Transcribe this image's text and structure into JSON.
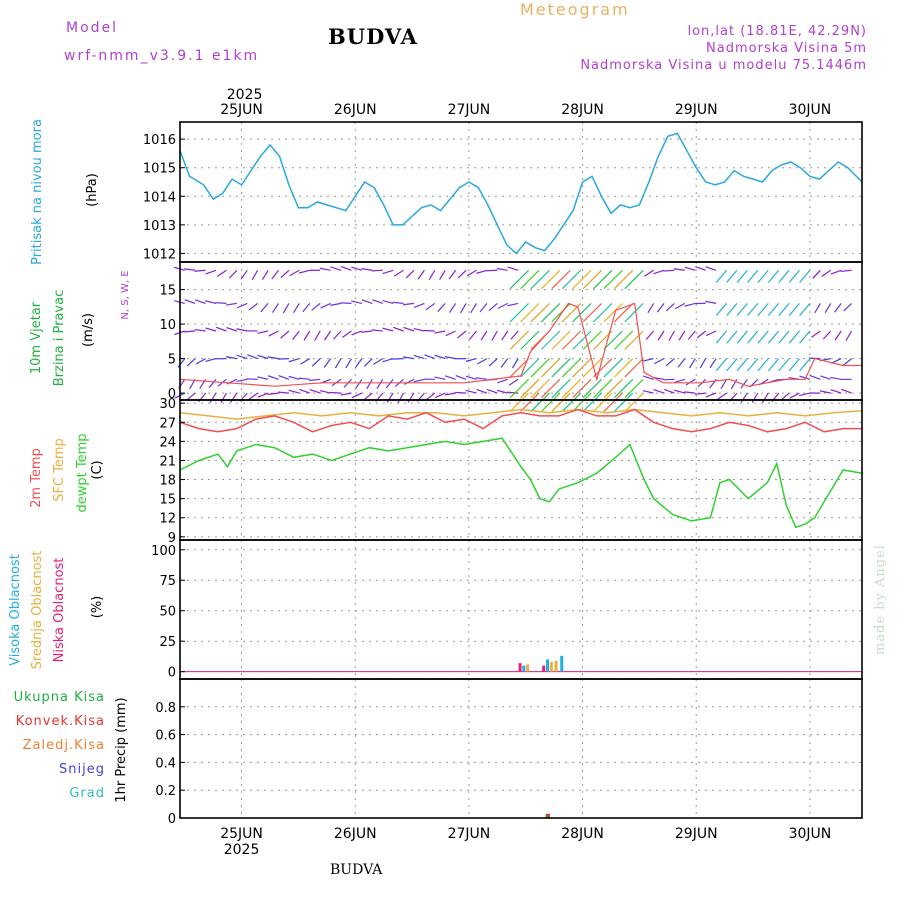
{
  "header": {
    "model_label": "Model",
    "model_version": "wrf-nmm_v3.9.1 e1km",
    "city": "BUDVA",
    "product": "Meteogram",
    "lonlat": "lon,lat (18.81E, 42.29N)",
    "elevation": "Nadmorska Visina 5m",
    "model_elevation": "Nadmorska Visina u modelu 75.1446m"
  },
  "credit": "made by Angel",
  "footer": "BUDVA",
  "colors": {
    "pressure": "#2aa8e0",
    "wind": "#20b040",
    "wind_dir": "#b040d0",
    "temp2m": "#f05050",
    "sfc": "#e8b040",
    "dewpt": "#30d030",
    "cloud_high": "#20b0e0",
    "cloud_mid": "#e8b040",
    "cloud_low": "#e0207a",
    "precip_total": "#20b040",
    "precip_conv": "#f03030",
    "precip_frozen": "#f08030",
    "snow": "#4040e0",
    "graupel": "#30c0b0"
  },
  "chart_data": [
    {
      "panel": "pressure",
      "type": "line",
      "x_top_labels": [
        "2025",
        "25JUN",
        "26JUN",
        "27JUN",
        "28JUN",
        "29JUN",
        "30JUN"
      ],
      "x_bottom_labels": [
        "25JUN",
        "26JUN",
        "27JUN",
        "28JUN",
        "29JUN",
        "30JUN",
        "2025"
      ],
      "xlim": [
        0,
        144
      ],
      "ylabel": "(hPa)",
      "side_label": "Pritisak na nivou mora",
      "ylim": [
        1011.7,
        1016.6
      ],
      "yticks": [
        1012,
        1013,
        1014,
        1015,
        1016
      ],
      "series": [
        {
          "name": "Pritisak na nivou mora",
          "x": [
            0,
            2,
            5,
            7,
            9,
            11,
            13,
            15,
            17,
            19,
            21,
            23,
            25,
            27,
            29,
            31,
            33,
            35,
            37,
            39,
            41,
            43,
            45,
            47,
            49,
            51,
            53,
            55,
            57,
            59,
            61,
            63,
            65,
            67,
            69,
            71,
            73,
            75,
            77,
            79,
            81,
            83,
            85,
            87,
            89,
            91,
            93,
            95,
            97,
            99,
            101,
            103,
            105,
            107,
            109,
            111,
            113,
            115,
            117,
            119,
            121,
            123,
            125,
            127,
            129,
            131,
            133,
            135,
            137,
            139,
            141,
            144
          ],
          "y": [
            1015.6,
            1014.7,
            1014.4,
            1013.9,
            1014.1,
            1014.6,
            1014.4,
            1014.9,
            1015.4,
            1015.8,
            1015.4,
            1014.4,
            1013.6,
            1013.6,
            1013.8,
            1013.7,
            1013.6,
            1013.5,
            1014.0,
            1014.5,
            1014.3,
            1013.7,
            1013.0,
            1013.0,
            1013.3,
            1013.6,
            1013.7,
            1013.5,
            1013.9,
            1014.3,
            1014.5,
            1014.3,
            1013.7,
            1013.0,
            1012.3,
            1012.0,
            1012.4,
            1012.2,
            1012.1,
            1012.5,
            1013.0,
            1013.5,
            1014.5,
            1014.7,
            1014.0,
            1013.4,
            1013.7,
            1013.6,
            1013.7,
            1014.5,
            1015.4,
            1016.1,
            1016.2,
            1015.6,
            1015.0,
            1014.5,
            1014.4,
            1014.5,
            1014.9,
            1014.7,
            1014.6,
            1014.5,
            1014.9,
            1015.1,
            1015.2,
            1015.0,
            1014.7,
            1014.6,
            1014.9,
            1015.2,
            1015.0,
            1014.5
          ]
        }
      ]
    },
    {
      "panel": "wind",
      "type": "line",
      "xlim": [
        0,
        144
      ],
      "ylabel": "(m/s)",
      "side_label_1": "10m Vjetar",
      "side_label_2": "Brzina i Pravac",
      "compass": "N, S, W, E",
      "ylim": [
        -1,
        19
      ],
      "yticks": [
        0,
        5,
        10,
        15
      ],
      "series": [
        {
          "name": "10m Vjetar",
          "x": [
            0,
            10,
            20,
            30,
            40,
            50,
            60,
            72,
            74,
            78,
            82,
            84,
            88,
            92,
            96,
            98,
            102,
            110,
            116,
            120,
            124,
            128,
            132,
            134,
            140,
            144
          ],
          "y": [
            2.0,
            1.5,
            1.0,
            1.5,
            1.5,
            1.5,
            1.5,
            2.5,
            6.0,
            9.0,
            13.0,
            12.5,
            2.0,
            12.0,
            13.0,
            3.0,
            1.5,
            1.5,
            2.0,
            1.0,
            1.5,
            2.0,
            2.0,
            5.0,
            4.0,
            4.0
          ]
        }
      ]
    },
    {
      "panel": "temperature",
      "type": "line",
      "xlim": [
        0,
        144
      ],
      "ylabel": "(C)",
      "side_labels": [
        "2m Temp",
        "SFC Temp",
        "dewpt Temp"
      ],
      "ylim": [
        8.5,
        30.5
      ],
      "yticks": [
        9,
        12,
        15,
        18,
        21,
        24,
        27,
        30
      ],
      "series": [
        {
          "name": "2m Temp",
          "x": [
            0,
            4,
            8,
            12,
            16,
            20,
            24,
            28,
            32,
            36,
            40,
            44,
            48,
            52,
            56,
            60,
            64,
            68,
            72,
            76,
            80,
            84,
            88,
            92,
            96,
            100,
            104,
            108,
            112,
            116,
            120,
            124,
            128,
            132,
            136,
            140,
            144
          ],
          "y": [
            27.0,
            26.0,
            25.5,
            26.0,
            27.5,
            28.0,
            27.0,
            25.5,
            26.5,
            27.0,
            26.0,
            28.0,
            27.5,
            28.5,
            27.0,
            27.5,
            26.0,
            28.0,
            28.5,
            28.0,
            28.0,
            29.0,
            28.0,
            28.0,
            29.0,
            27.0,
            26.0,
            25.5,
            26.0,
            27.0,
            26.5,
            25.5,
            26.0,
            27.0,
            25.5,
            26.0,
            26.0
          ]
        },
        {
          "name": "SFC Temp",
          "x": [
            0,
            6,
            12,
            18,
            24,
            30,
            36,
            42,
            48,
            54,
            60,
            66,
            72,
            78,
            84,
            90,
            96,
            102,
            108,
            114,
            120,
            126,
            132,
            138,
            144
          ],
          "y": [
            28.5,
            28.0,
            27.5,
            28.0,
            28.5,
            28.0,
            28.5,
            28.0,
            28.5,
            28.5,
            28.0,
            28.5,
            29.0,
            28.5,
            29.0,
            28.5,
            29.0,
            28.5,
            28.0,
            28.5,
            28.0,
            28.5,
            28.0,
            28.5,
            28.8
          ]
        },
        {
          "name": "dewpt Temp",
          "x": [
            0,
            4,
            8,
            10,
            12,
            16,
            20,
            24,
            28,
            32,
            36,
            40,
            44,
            48,
            52,
            56,
            60,
            64,
            68,
            72,
            74,
            76,
            78,
            80,
            84,
            88,
            92,
            95,
            98,
            100,
            104,
            108,
            112,
            114,
            116,
            120,
            124,
            126,
            128,
            130,
            132,
            134,
            138,
            140,
            144
          ],
          "y": [
            19.5,
            21.0,
            22.0,
            20.0,
            22.5,
            23.5,
            23.0,
            21.5,
            22.0,
            21.0,
            22.0,
            23.0,
            22.5,
            23.0,
            23.5,
            24.0,
            23.5,
            24.0,
            24.5,
            20.0,
            18.0,
            15.0,
            14.5,
            16.5,
            17.5,
            19.0,
            21.5,
            23.5,
            18.0,
            15.0,
            12.5,
            11.5,
            12.0,
            17.5,
            18.0,
            15.0,
            17.5,
            20.5,
            14.0,
            10.5,
            11.0,
            12.0,
            17.0,
            19.5,
            19.0
          ]
        }
      ]
    },
    {
      "panel": "cloud",
      "type": "bar",
      "xlim": [
        0,
        144
      ],
      "ylabel": "(%)",
      "side_labels": [
        "Visoka Oblacnost",
        "Srednja Oblacnost",
        "Niska Oblacnost"
      ],
      "ylim": [
        -6,
        108
      ],
      "yticks": [
        0,
        25,
        50,
        75,
        100
      ],
      "series": [
        {
          "name": "Visoka Oblacnost",
          "x": [
            72.6,
            77.6,
            80.6
          ],
          "values": [
            5,
            10,
            13
          ]
        },
        {
          "name": "Srednja Oblacnost",
          "x": [
            73.4,
            78.4,
            79.4
          ],
          "values": [
            6,
            8,
            9
          ]
        },
        {
          "name": "Niska Oblacnost",
          "x": [
            71.8,
            76.8
          ],
          "values": [
            7,
            5
          ]
        }
      ]
    },
    {
      "panel": "precip",
      "type": "bar",
      "xlim": [
        0,
        144
      ],
      "ylabel": "1hr Precip (mm)",
      "side_labels": [
        "Ukupna Kisa",
        "Konvek.Kisa",
        "Zaledj.Kisa",
        "Snijeg",
        "Grad"
      ],
      "ylim": [
        0,
        1.0
      ],
      "yticks": [
        0,
        0.2,
        0.4,
        0.6,
        0.8
      ],
      "series": [
        {
          "name": "Ukupna Kisa",
          "x": [
            77.5
          ],
          "values": [
            0.03
          ]
        },
        {
          "name": "Konvek.Kisa",
          "x": [
            77.8
          ],
          "values": [
            0.03
          ]
        }
      ]
    }
  ]
}
